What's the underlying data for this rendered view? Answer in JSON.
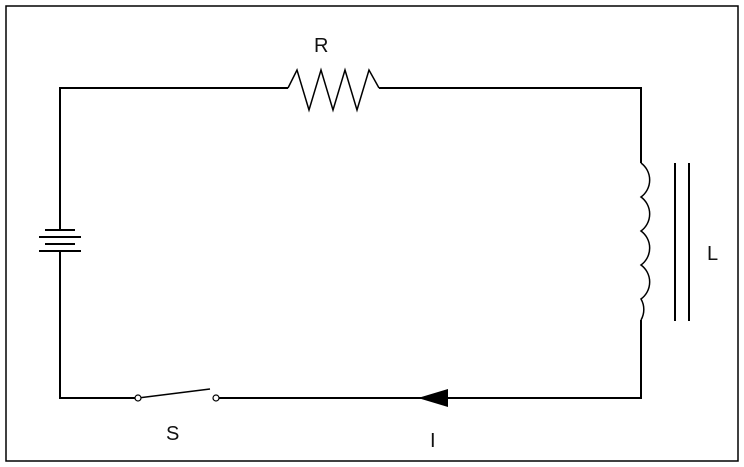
{
  "labels": {
    "resistor": "R",
    "inductor": "L",
    "switch": "S",
    "current": "I"
  },
  "colors": {
    "wire": "#000000",
    "frame": "#000000",
    "background": "#ffffff"
  }
}
